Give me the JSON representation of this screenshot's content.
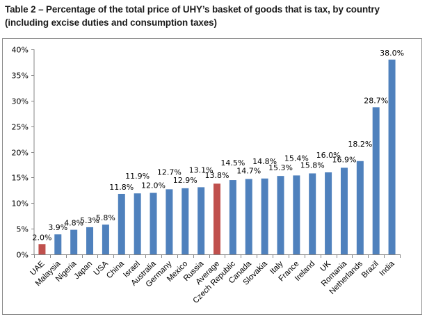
{
  "chart_data": {
    "type": "bar",
    "title": "Table 2 – Percentage of the total price of UHY’s basket of goods that is tax, by country (including excise duties and consumption taxes)",
    "xlabel": "",
    "ylabel": "",
    "ylim": [
      0,
      40
    ],
    "yticks": [
      "0%",
      "5%",
      "10%",
      "15%",
      "20%",
      "25%",
      "30%",
      "35%",
      "40%"
    ],
    "ytick_values": [
      0,
      5,
      10,
      15,
      20,
      25,
      30,
      35,
      40
    ],
    "grid": false,
    "legend": "none",
    "categories": [
      "UAE",
      "Malaysia",
      "Nigeria",
      "Japan",
      "USA",
      "China",
      "Israel",
      "Australia",
      "Germany",
      "Mexico",
      "Russia",
      "Average",
      "Czech Republic",
      "Canada",
      "Slovakia",
      "Italy",
      "France",
      "Ireland",
      "UK",
      "Romania",
      "Netherlands",
      "Brazil",
      "India"
    ],
    "values": [
      2.0,
      3.9,
      4.8,
      5.3,
      5.8,
      11.8,
      11.9,
      12.0,
      12.7,
      12.9,
      13.1,
      13.8,
      14.5,
      14.7,
      14.8,
      15.3,
      15.4,
      15.8,
      16.0,
      16.9,
      18.2,
      28.7,
      38.0
    ],
    "data_labels": [
      "2.0%",
      "3.9%",
      "4.8%",
      "5.3%",
      "5.8%",
      "11.8%",
      "11.9%",
      "12.0%",
      "12.7%",
      "12.9%",
      "13.1%",
      "13.8%",
      "14.5%",
      "14.7%",
      "14.8%",
      "15.3%",
      "15.4%",
      "15.8%",
      "16.0%",
      "16.9%",
      "18.2%",
      "28.7%",
      "38.0%"
    ],
    "highlighted": [
      "UAE",
      "Average"
    ],
    "colors": {
      "default": "#4f81bd",
      "highlight": "#c0504d",
      "axis": "#868686"
    }
  }
}
